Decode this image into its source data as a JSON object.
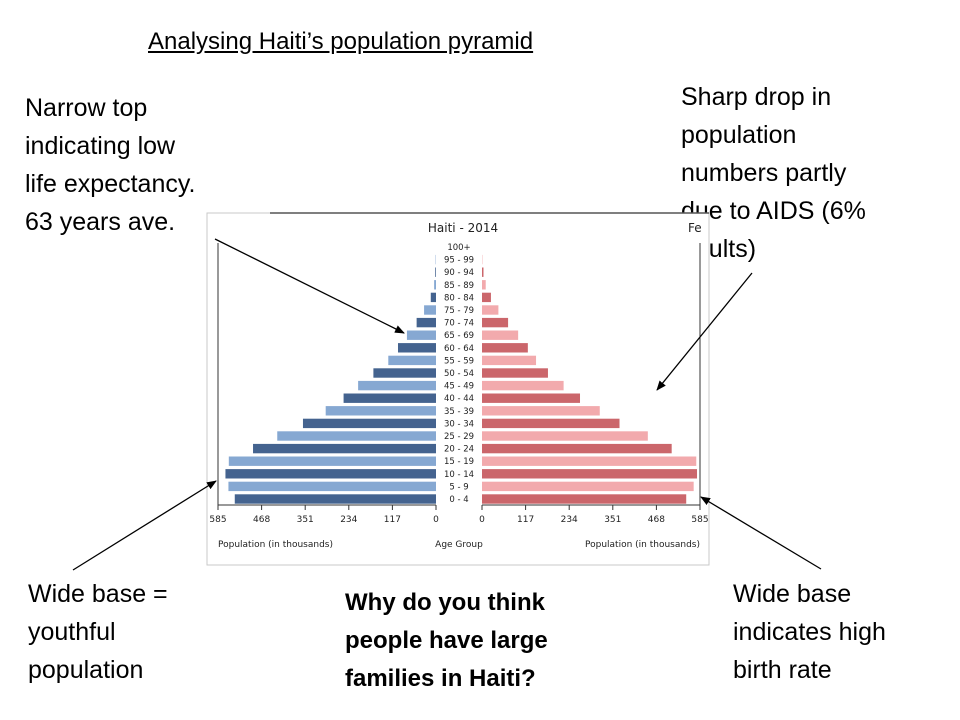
{
  "slide": {
    "title": "Analysing Haiti’s population pyramid",
    "question": [
      "Why do you think",
      "people have large",
      "families in Haiti?"
    ]
  },
  "annotations": {
    "top_left": [
      "Narrow top",
      "indicating low",
      "life expectancy.",
      "63 years ave."
    ],
    "top_right": [
      "Sharp drop in",
      "population",
      "numbers partly",
      "due to AIDS (6%",
      "adults)"
    ],
    "bottom_left": [
      "Wide base =",
      "youthful",
      "population"
    ],
    "bottom_right": [
      "Wide base",
      "indicates high",
      "birth rate"
    ]
  },
  "chart_data": {
    "type": "bar",
    "title": "Haiti - 2014",
    "header_fragment": "Fe",
    "categories": [
      "0 - 4",
      "5 - 9",
      "10 - 14",
      "15 - 19",
      "20 - 24",
      "25 - 29",
      "30 - 34",
      "35 - 39",
      "40 - 44",
      "45 - 49",
      "50 - 54",
      "55 - 59",
      "60 - 64",
      "65 - 69",
      "70 - 74",
      "75 - 79",
      "80 - 84",
      "85 - 89",
      "90 - 94",
      "95 - 99",
      "100+"
    ],
    "series": [
      {
        "side": "left",
        "colors": [
          "#44638f",
          "#86a8d2"
        ],
        "values": [
          540,
          557,
          565,
          556,
          491,
          426,
          357,
          296,
          248,
          209,
          168,
          128,
          102,
          78,
          52,
          32,
          14,
          5,
          2,
          1,
          0
        ]
      },
      {
        "side": "right",
        "colors": [
          "#cb666b",
          "#f2aaad"
        ],
        "values": [
          548,
          568,
          577,
          575,
          509,
          445,
          369,
          316,
          263,
          219,
          177,
          145,
          123,
          97,
          70,
          44,
          24,
          10,
          4,
          1,
          0
        ]
      }
    ],
    "x_ticks": [
      585,
      468,
      351,
      234,
      117,
      0
    ],
    "xlim": [
      0,
      585
    ],
    "xlabel_left": "Population (in thousands)",
    "xlabel_center": "Age Group",
    "xlabel_right": "Population (in thousands)",
    "bar_order": "bottom-to-top"
  }
}
